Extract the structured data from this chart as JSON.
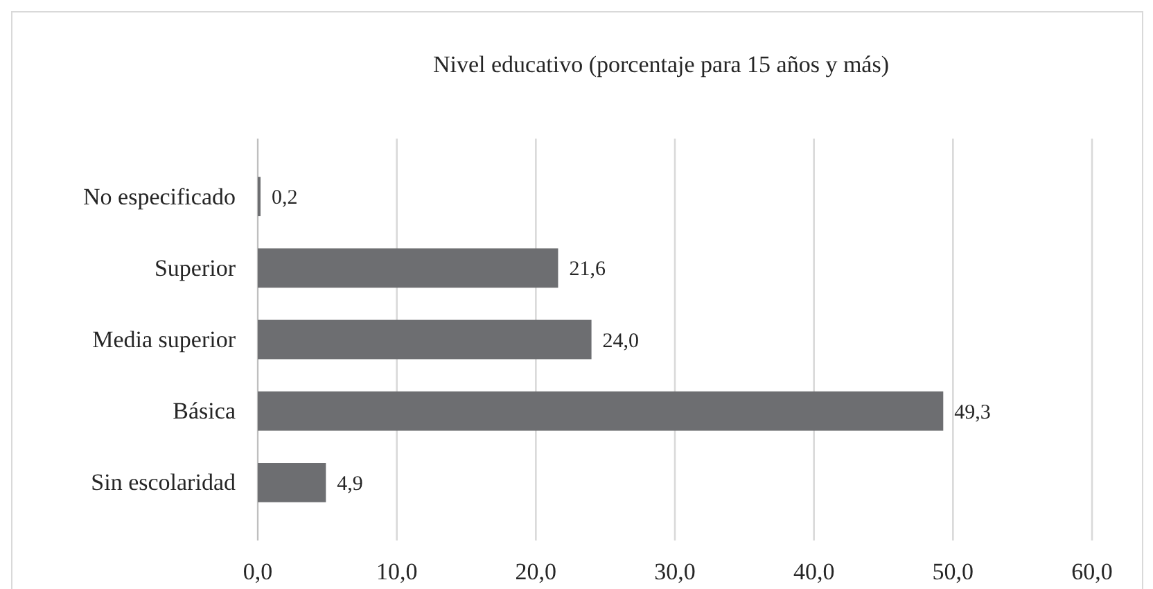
{
  "chart_data": {
    "type": "bar",
    "orientation": "horizontal",
    "title": "Nivel educativo (porcentaje para 15 años y más)",
    "categories": [
      "No especificado",
      "Superior",
      "Media superior",
      "Básica",
      "Sin escolaridad"
    ],
    "values": [
      0.2,
      21.6,
      24.0,
      49.3,
      4.9
    ],
    "value_labels": [
      "0,2",
      "21,6",
      "24,0",
      "49,3",
      "4,9"
    ],
    "color": "#6d6e71",
    "xlim": [
      0,
      60
    ],
    "xticks": [
      {
        "value": 0,
        "label": "0,0"
      },
      {
        "value": 10,
        "label": "10,0"
      },
      {
        "value": 20,
        "label": "20,0"
      },
      {
        "value": 30,
        "label": "30,0"
      },
      {
        "value": 40,
        "label": "40,0"
      },
      {
        "value": 50,
        "label": "50,0"
      },
      {
        "value": 60,
        "label": "60,0"
      }
    ],
    "grid": "x"
  }
}
